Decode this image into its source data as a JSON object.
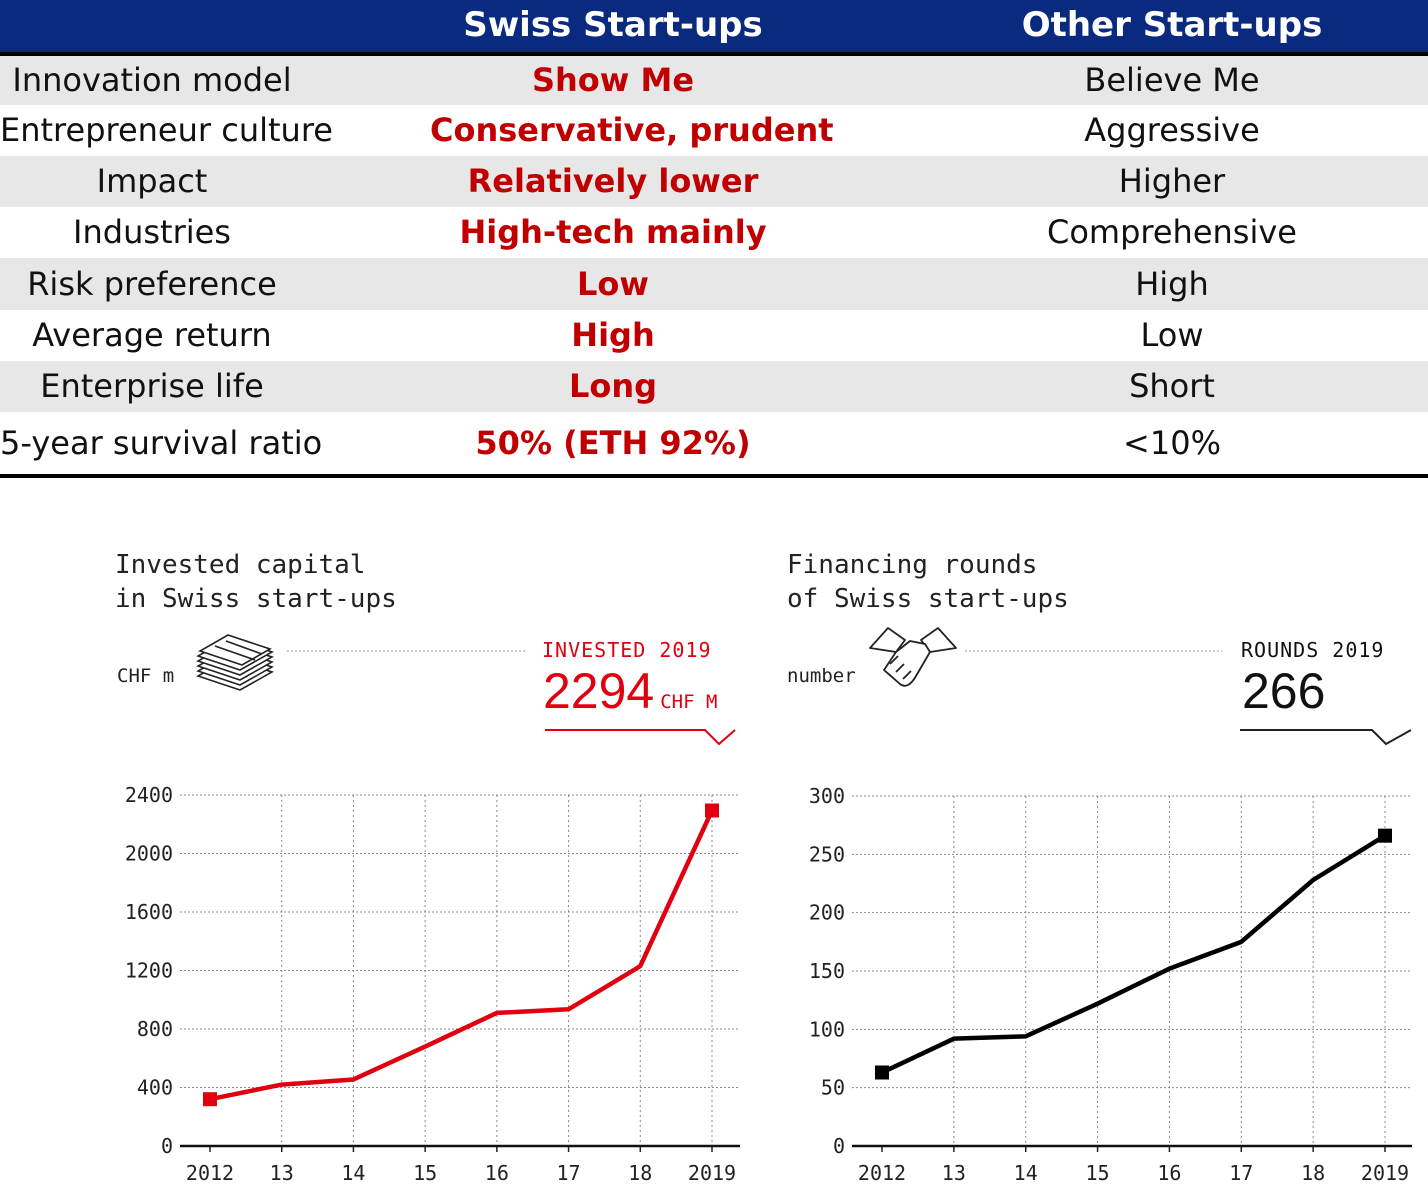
{
  "table": {
    "headers": [
      "",
      "Swiss Start-ups",
      "Other Start-ups"
    ],
    "rows": [
      [
        "Innovation model",
        "Show Me",
        "Believe Me"
      ],
      [
        "Entrepreneur culture",
        "Conservative, prudent",
        "Aggressive"
      ],
      [
        "Impact",
        "Relatively lower",
        "Higher"
      ],
      [
        "Industries",
        "High-tech mainly",
        "Comprehensive"
      ],
      [
        "Risk preference",
        "Low",
        "High"
      ],
      [
        "Average return",
        "High",
        "Low"
      ],
      [
        "Enterprise life",
        "Long",
        "Short"
      ],
      [
        "5-year survival ratio",
        "50%  (ETH 92%)",
        "<10%"
      ]
    ],
    "colors": {
      "header_bg": "#0a2a80",
      "accent_text": "#c00000",
      "row_shade": "#e7e7e7"
    }
  },
  "chart_data": [
    {
      "type": "line",
      "title_lines": [
        "Invested capital",
        "in Swiss start-ups"
      ],
      "unit": "CHF m",
      "icon": "banknote-stack-icon",
      "highlight": {
        "label": "INVESTED 2019",
        "value": "2294",
        "unit": "CHF M"
      },
      "x": [
        "2012",
        "13",
        "14",
        "15",
        "16",
        "17",
        "18",
        "2019"
      ],
      "values": [
        320,
        420,
        455,
        680,
        910,
        935,
        1230,
        2294
      ],
      "ylim": [
        0,
        2400
      ],
      "yticks": [
        0,
        400,
        800,
        1200,
        1600,
        2000,
        2400
      ],
      "grid": true,
      "color": "#e00010"
    },
    {
      "type": "line",
      "title_lines": [
        "Financing rounds",
        "of Swiss start-ups"
      ],
      "unit": "number",
      "icon": "handshake-icon",
      "highlight": {
        "label": "ROUNDS 2019",
        "value": "266",
        "unit": ""
      },
      "x": [
        "2012",
        "13",
        "14",
        "15",
        "16",
        "17",
        "18",
        "2019"
      ],
      "values": [
        63,
        92,
        94,
        122,
        152,
        175,
        228,
        266
      ],
      "ylim": [
        0,
        300
      ],
      "yticks": [
        0,
        50,
        100,
        150,
        200,
        250,
        300
      ],
      "grid": true,
      "color": "#000000"
    }
  ]
}
